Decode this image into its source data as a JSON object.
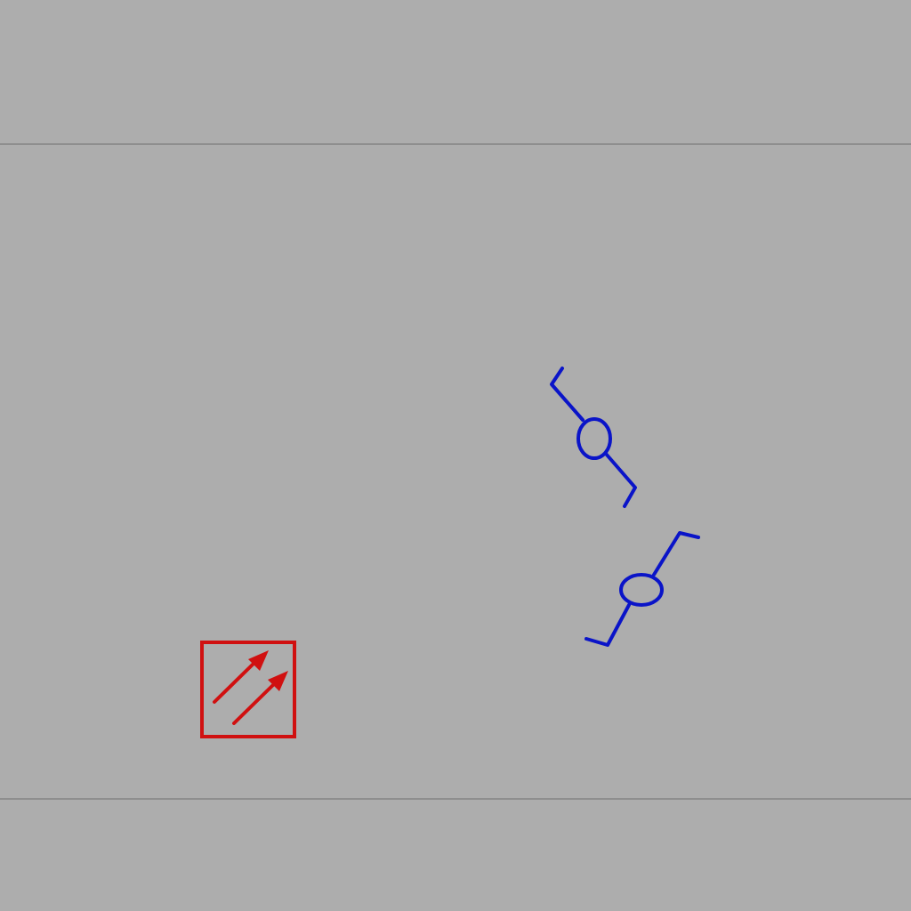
{
  "colors": {
    "background": "#adadad",
    "guide_line": "#8e8e8e",
    "blue_symbol": "#0a14c8",
    "red_symbol": "#d01010"
  },
  "symbols": [
    {
      "name": "guide-line-top",
      "kind": "horizontal-rule"
    },
    {
      "name": "guide-line-bottom",
      "kind": "horizontal-rule"
    },
    {
      "name": "valve-symbol-upper",
      "kind": "z-bracket-with-ellipse"
    },
    {
      "name": "valve-symbol-lower",
      "kind": "z-bracket-with-ellipse"
    },
    {
      "name": "double-arrow-box",
      "kind": "box-with-two-diagonal-arrows"
    }
  ]
}
